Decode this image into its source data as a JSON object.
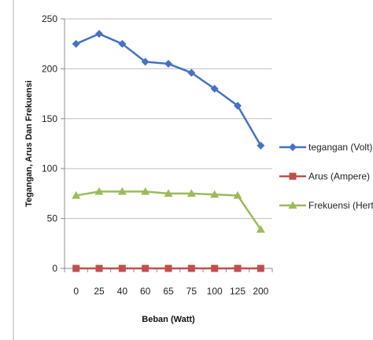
{
  "chart_data": {
    "type": "line",
    "categories": [
      "0",
      "25",
      "40",
      "60",
      "65",
      "75",
      "100",
      "125",
      "200"
    ],
    "ylim": [
      0,
      250
    ],
    "yticks": [
      0,
      50,
      100,
      150,
      200,
      250
    ],
    "xlabel": "Beban (Watt)",
    "ylabel": "Tegangan, Arus Dan Frekuensi",
    "grid": "horizontal",
    "legend_position": "right",
    "series": [
      {
        "name": "tegangan (Volt)",
        "color": "#4472c4",
        "marker": "diamond",
        "values": [
          225,
          235,
          225,
          207,
          205,
          196,
          180,
          163,
          123
        ]
      },
      {
        "name": "Arus (Ampere)",
        "color": "#c0504d",
        "marker": "square",
        "values": [
          0,
          0,
          0,
          0,
          0,
          0,
          0,
          0,
          0
        ]
      },
      {
        "name": "Frekuensi (Hertz)",
        "color": "#9bbb59",
        "marker": "triangle",
        "values": [
          73,
          77,
          77,
          77,
          75,
          75,
          74,
          73,
          39
        ]
      }
    ]
  }
}
